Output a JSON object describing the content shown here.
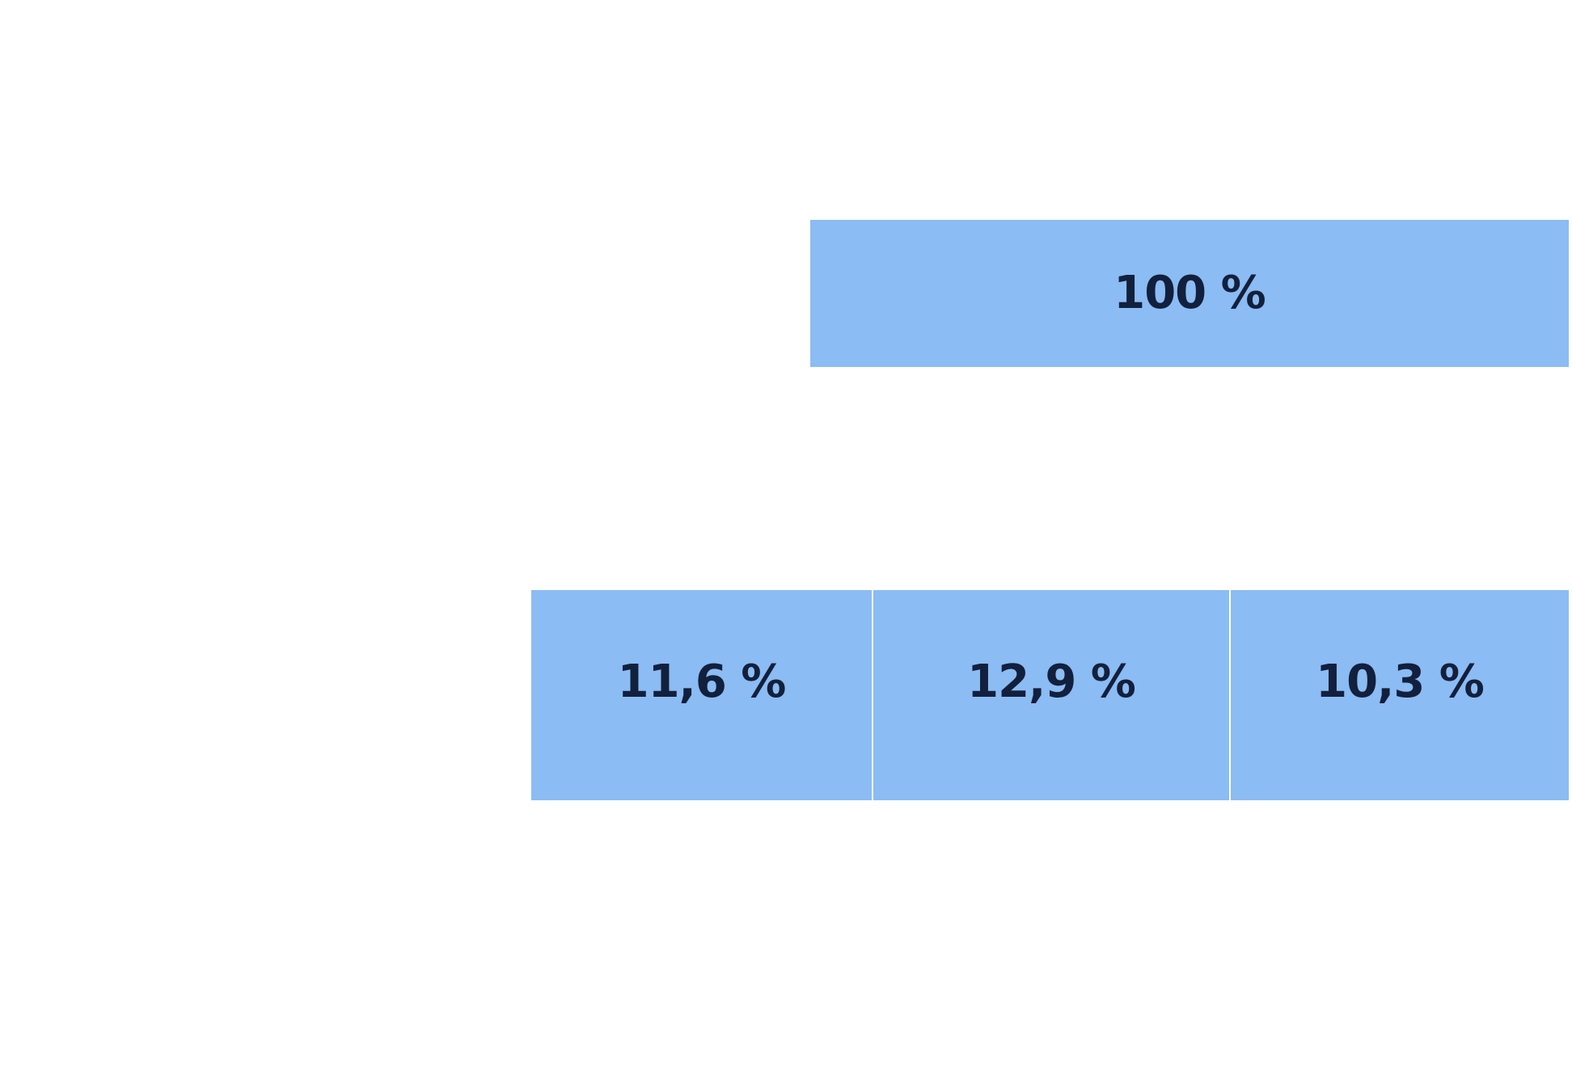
{
  "diagram": {
    "fill_color": "#8bbcf3",
    "text_color": "#12203d",
    "top": {
      "label": "100 %"
    },
    "bottom": [
      {
        "label": "11,6 %"
      },
      {
        "label": "12,9 %"
      },
      {
        "label": "10,3 %"
      }
    ]
  }
}
